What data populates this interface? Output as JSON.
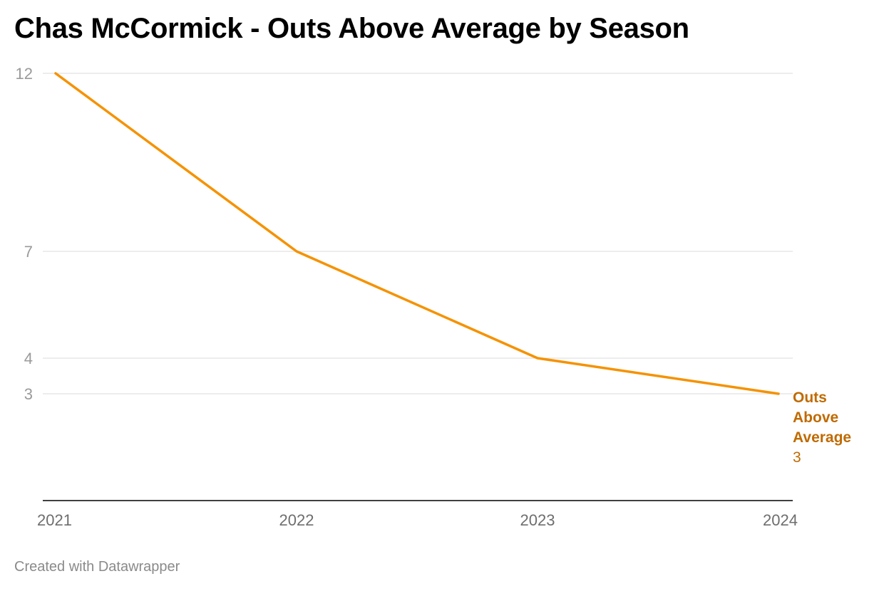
{
  "chart_data": {
    "type": "line",
    "title": "Chas McCormick - Outs Above Average by Season",
    "x": [
      "2021",
      "2022",
      "2023",
      "2024"
    ],
    "y_ticks": [
      12,
      7,
      4,
      3
    ],
    "ylim": [
      0,
      12
    ],
    "grid": true,
    "series": [
      {
        "name": "Outs Above Average",
        "values": [
          12,
          7,
          4,
          3
        ],
        "end_label": "3",
        "color": "#f59200",
        "label_color": "#c06a00"
      }
    ],
    "axis_color": "#000000",
    "grid_color": "#e2e2e2"
  },
  "footer": {
    "credit": "Created with Datawrapper"
  }
}
